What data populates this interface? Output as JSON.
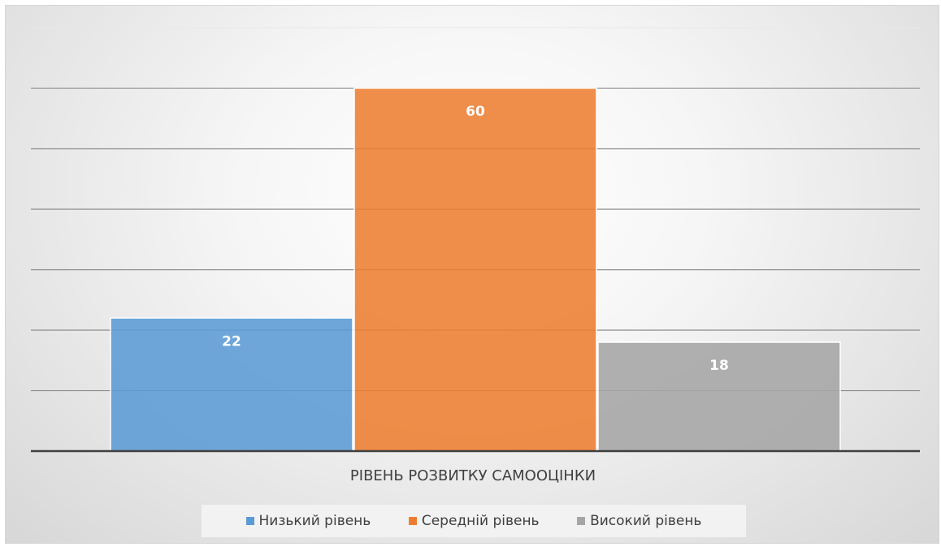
{
  "chart_data": {
    "type": "bar",
    "title": "",
    "xlabel": "РІВЕНЬ РОЗВИТКУ САМООЦІНКИ",
    "ylabel": "",
    "categories": [
      "РІВЕНЬ РОЗВИТКУ САМООЦІНКИ"
    ],
    "series": [
      {
        "name": "Низький рівень",
        "values": [
          22
        ],
        "color": "#5b9bd5",
        "label": "22"
      },
      {
        "name": "Середній рівень",
        "values": [
          60
        ],
        "color": "#ed7d31",
        "label": "60"
      },
      {
        "name": "Високий рівень",
        "values": [
          18
        ],
        "color": "#a5a5a5",
        "label": "18"
      }
    ],
    "ylim": [
      0,
      70
    ],
    "ytick_step": 10,
    "grid": true,
    "legend_position": "bottom",
    "data_labels": true
  }
}
